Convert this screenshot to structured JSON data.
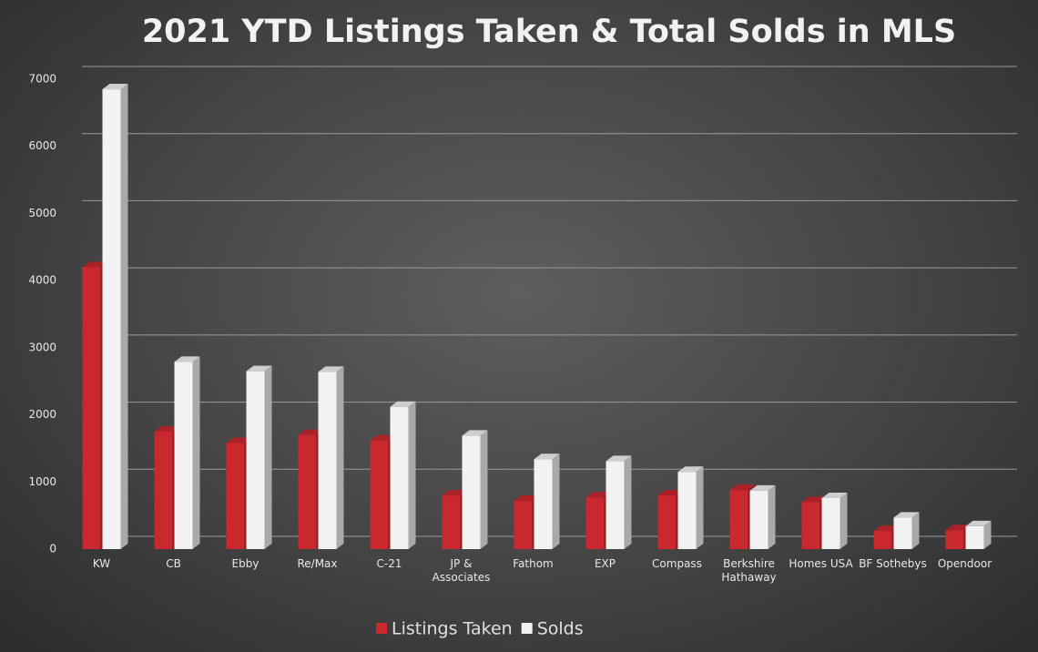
{
  "chart_data": {
    "type": "bar3d",
    "title": "2021 YTD Listings Taken & Total Solds in MLS",
    "categories": [
      "KW",
      "CB",
      "Ebby",
      "Re/Max",
      "C-21",
      "JP & Associates",
      "Fathom",
      "EXP",
      "Compass",
      "Berkshire Hathaway",
      "Homes USA",
      "BF Sothebys",
      "Opendoor"
    ],
    "series": [
      {
        "name": "Listings Taken",
        "color": "#c8282e",
        "values": [
          4200,
          1750,
          1580,
          1700,
          1620,
          800,
          720,
          770,
          800,
          880,
          700,
          270,
          280
        ]
      },
      {
        "name": "Solds",
        "color": "#f2f2f2",
        "values": [
          6850,
          2790,
          2650,
          2640,
          2120,
          1690,
          1340,
          1310,
          1150,
          870,
          760,
          470,
          340
        ]
      }
    ],
    "ylim": [
      0,
      7000
    ],
    "yticks": [
      0,
      1000,
      2000,
      3000,
      4000,
      5000,
      6000,
      7000
    ],
    "grid": true,
    "legend": "bottom"
  }
}
